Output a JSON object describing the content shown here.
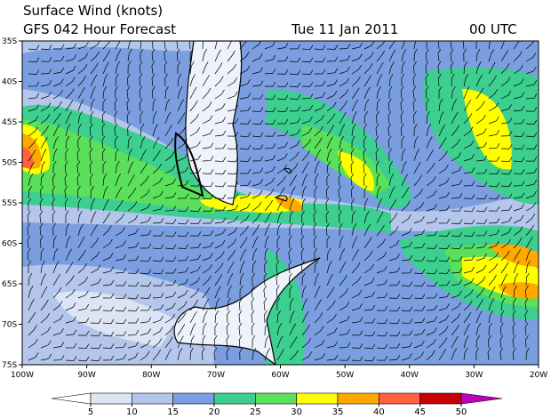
{
  "header": {
    "title": "Surface Wind (knots)",
    "subtitle": "GFS 042 Hour Forecast",
    "date": "Tue 11 Jan 2011",
    "time": "00 UTC"
  },
  "lat_labels": [
    "35S",
    "40S",
    "45S",
    "50S",
    "55S",
    "60S",
    "65S",
    "70S",
    "75S"
  ],
  "lon_labels": [
    "100W",
    "90W",
    "80W",
    "70W",
    "60W",
    "50W",
    "40W",
    "30W",
    "20W"
  ],
  "colorbar": {
    "labels": [
      5,
      10,
      15,
      20,
      25,
      30,
      35,
      40,
      45,
      50
    ],
    "colors": [
      "#ffffff",
      "#dde5f5",
      "#b4c6ec",
      "#7a9ee0",
      "#3ccf8f",
      "#5ae05a",
      "#ffff00",
      "#ffa800",
      "#ff6040",
      "#c80000",
      "#c000c0"
    ]
  }
}
